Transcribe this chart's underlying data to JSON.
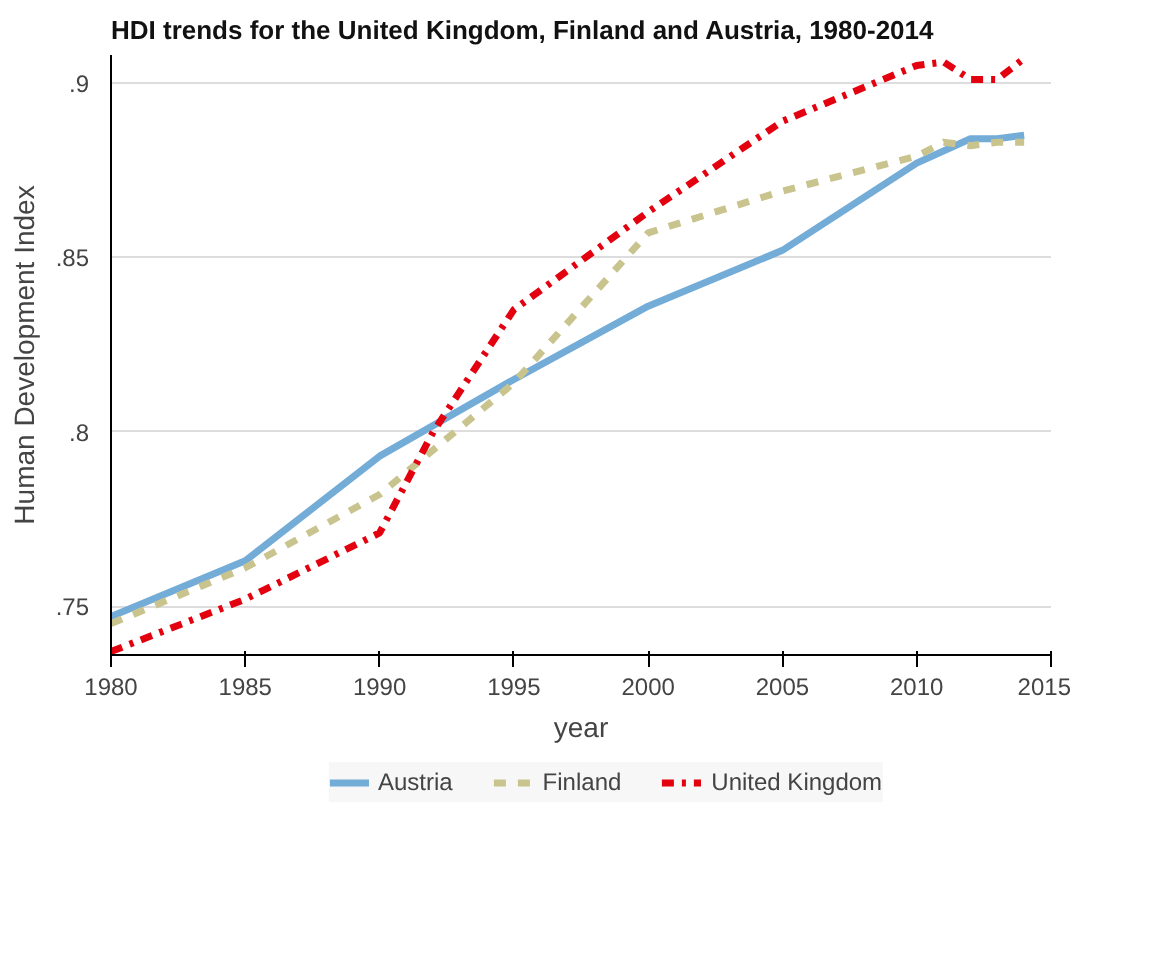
{
  "chart_data": {
    "type": "line",
    "title": "HDI trends for the United Kingdom, Finland and Austria, 1980-2014",
    "xlabel": "year",
    "ylabel": "Human Development Index",
    "xlim": [
      1980,
      2015
    ],
    "xticks": [
      1980,
      1985,
      1990,
      1995,
      2000,
      2005,
      2010,
      2015
    ],
    "ylim": [
      0.736,
      0.908
    ],
    "yticks": [
      {
        "value": 0.75,
        "label": ".75"
      },
      {
        "value": 0.8,
        "label": ".8"
      },
      {
        "value": 0.85,
        "label": ".85"
      },
      {
        "value": 0.9,
        "label": ".9"
      }
    ],
    "grid": "y",
    "legend": "bottom",
    "series": [
      {
        "name": "Austria",
        "color": "#74acd8",
        "line_style": "solid",
        "x": [
          1980,
          1985,
          1990,
          1995,
          2000,
          2005,
          2010,
          2012,
          2013,
          2014
        ],
        "values": [
          0.747,
          0.763,
          0.793,
          0.815,
          0.836,
          0.852,
          0.877,
          0.884,
          0.884,
          0.885
        ]
      },
      {
        "name": "Finland",
        "color": "#c9c38e",
        "line_style": "dashed",
        "x": [
          1980,
          1985,
          1990,
          1995,
          2000,
          2005,
          2010,
          2011,
          2012,
          2013,
          2014
        ],
        "values": [
          0.745,
          0.761,
          0.782,
          0.814,
          0.857,
          0.869,
          0.879,
          0.883,
          0.882,
          0.883,
          0.883
        ]
      },
      {
        "name": "United Kingdom",
        "color": "#e3000f",
        "line_style": "dashdot",
        "x": [
          1980,
          1985,
          1990,
          1992,
          1995,
          2000,
          2005,
          2010,
          2011,
          2012,
          2013,
          2014
        ],
        "values": [
          0.737,
          0.752,
          0.771,
          0.8,
          0.835,
          0.863,
          0.889,
          0.905,
          0.906,
          0.901,
          0.901,
          0.907
        ]
      }
    ]
  }
}
